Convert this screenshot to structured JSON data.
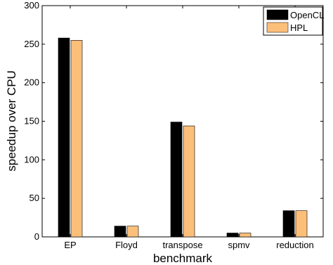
{
  "chart_data": {
    "type": "bar",
    "title": "",
    "xlabel": "benchmark",
    "ylabel": "speedup over CPU",
    "categories": [
      "EP",
      "Floyd",
      "transpose",
      "spmv",
      "reduction"
    ],
    "series": [
      {
        "name": "OpenCL",
        "color": "#000000",
        "values": [
          258,
          14,
          149,
          5,
          34
        ]
      },
      {
        "name": "HPL",
        "color": "#fcbf7a",
        "values": [
          255,
          14,
          144,
          5,
          34
        ]
      }
    ],
    "ylim": [
      0,
      300
    ],
    "yticks": [
      "0",
      "50",
      "100",
      "150",
      "200",
      "250",
      "300"
    ],
    "grid": false,
    "legend_position": "top-right"
  }
}
